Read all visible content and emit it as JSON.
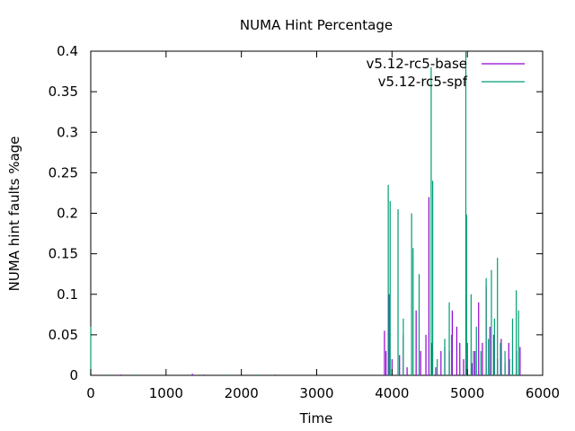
{
  "chart_data": {
    "type": "line",
    "title": "NUMA Hint Percentage",
    "xlabel": "Time",
    "ylabel": "NUMA hint faults %age",
    "xlim": [
      0,
      6000
    ],
    "ylim": [
      0,
      0.4
    ],
    "x_ticks": [
      "0",
      "1000",
      "2000",
      "3000",
      "4000",
      "5000",
      "6000"
    ],
    "y_ticks": [
      "0",
      "0.05",
      "0.1",
      "0.15",
      "0.2",
      "0.25",
      "0.3",
      "0.35",
      "0.4"
    ],
    "grid": false,
    "legend_position": "top-right",
    "series": [
      {
        "name": "v5.12-rc5-base",
        "color": "#9400d3",
        "points": [
          [
            0,
            0.002
          ],
          [
            400,
            0.001
          ],
          [
            1350,
            0.002
          ],
          [
            1500,
            0.001
          ],
          [
            2450,
            0.001
          ],
          [
            3900,
            0.055
          ],
          [
            3920,
            0.03
          ],
          [
            3960,
            0.1
          ],
          [
            4000,
            0.02
          ],
          [
            4100,
            0.025
          ],
          [
            4150,
            0.05
          ],
          [
            4200,
            0.01
          ],
          [
            4320,
            0.08
          ],
          [
            4380,
            0.03
          ],
          [
            4450,
            0.05
          ],
          [
            4490,
            0.22
          ],
          [
            4530,
            0.04
          ],
          [
            4580,
            0.01
          ],
          [
            4650,
            0.03
          ],
          [
            4700,
            0.035
          ],
          [
            4760,
            0.03
          ],
          [
            4800,
            0.08
          ],
          [
            4860,
            0.06
          ],
          [
            4900,
            0.04
          ],
          [
            4950,
            0.02
          ],
          [
            5000,
            0.04
          ],
          [
            5060,
            0.015
          ],
          [
            5100,
            0.03
          ],
          [
            5150,
            0.09
          ],
          [
            5200,
            0.04
          ],
          [
            5250,
            0.11
          ],
          [
            5300,
            0.06
          ],
          [
            5350,
            0.05
          ],
          [
            5400,
            0.02
          ],
          [
            5450,
            0.045
          ],
          [
            5500,
            0.015
          ],
          [
            5550,
            0.04
          ],
          [
            5600,
            0.02
          ],
          [
            5650,
            0.03
          ],
          [
            5700,
            0.035
          ]
        ]
      },
      {
        "name": "v5.12-rc5-spf",
        "color": "#009e73",
        "points": [
          [
            0,
            0.06
          ],
          [
            250,
            0.001
          ],
          [
            600,
            0.001
          ],
          [
            1000,
            0.001
          ],
          [
            1800,
            0.001
          ],
          [
            2200,
            0.001
          ],
          [
            3300,
            0.001
          ],
          [
            3950,
            0.235
          ],
          [
            3975,
            0.215
          ],
          [
            4080,
            0.205
          ],
          [
            4150,
            0.07
          ],
          [
            4260,
            0.2
          ],
          [
            4280,
            0.157
          ],
          [
            4360,
            0.125
          ],
          [
            4520,
            0.38
          ],
          [
            4540,
            0.24
          ],
          [
            4600,
            0.02
          ],
          [
            4700,
            0.045
          ],
          [
            4760,
            0.09
          ],
          [
            4790,
            0.05
          ],
          [
            4980,
            0.4
          ],
          [
            4990,
            0.198
          ],
          [
            5050,
            0.1
          ],
          [
            5080,
            0.03
          ],
          [
            5120,
            0.06
          ],
          [
            5180,
            0.03
          ],
          [
            5250,
            0.12
          ],
          [
            5280,
            0.045
          ],
          [
            5320,
            0.13
          ],
          [
            5360,
            0.07
          ],
          [
            5400,
            0.145
          ],
          [
            5440,
            0.04
          ],
          [
            5500,
            0.03
          ],
          [
            5560,
            0.02
          ],
          [
            5600,
            0.07
          ],
          [
            5650,
            0.105
          ],
          [
            5680,
            0.08
          ]
        ]
      }
    ]
  }
}
